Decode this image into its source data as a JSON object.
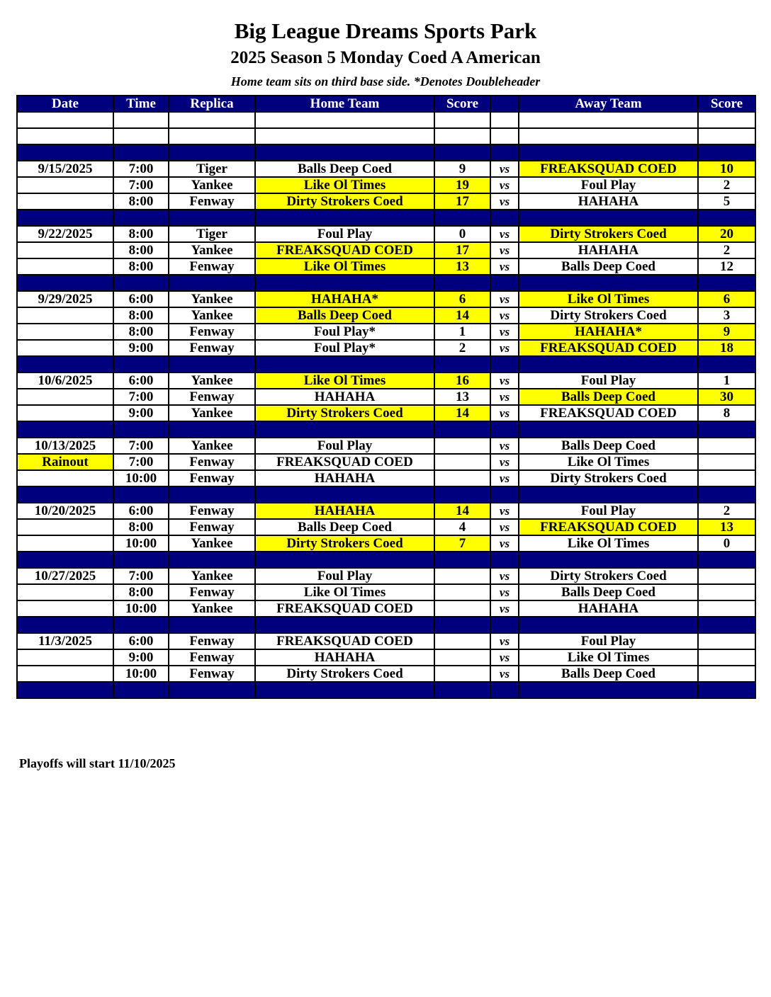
{
  "title": "Big League Dreams Sports Park",
  "subtitle": "2025 Season 5 Monday Coed A American",
  "note": "Home team sits on third base side.  *Denotes Doubleheader",
  "columns": [
    "Date",
    "Time",
    "Replica",
    "Home Team",
    "Score",
    "",
    "Away Team",
    "Score"
  ],
  "vs_label": "vs",
  "highlight_color": "#ffff00",
  "header_color": "#00007f",
  "weeks": [
    {
      "rows": [
        {
          "date": "9/15/2025",
          "time": "7:00",
          "replica": "Tiger",
          "home": "Balls Deep Coed",
          "home_score": "9",
          "away": "FREAKSQUAD COED",
          "away_score": "10",
          "winner": "away"
        },
        {
          "date": "",
          "time": "7:00",
          "replica": "Yankee",
          "home": "Like Ol Times",
          "home_score": "19",
          "away": "Foul Play",
          "away_score": "2",
          "winner": "home"
        },
        {
          "date": "",
          "time": "8:00",
          "replica": "Fenway",
          "home": "Dirty Strokers Coed",
          "home_score": "17",
          "away": "HAHAHA",
          "away_score": "5",
          "winner": "home"
        }
      ]
    },
    {
      "rows": [
        {
          "date": "9/22/2025",
          "time": "8:00",
          "replica": "Tiger",
          "home": "Foul Play",
          "home_score": "0",
          "away": "Dirty Strokers Coed",
          "away_score": "20",
          "winner": "away"
        },
        {
          "date": "",
          "time": "8:00",
          "replica": "Yankee",
          "home": "FREAKSQUAD COED",
          "home_score": "17",
          "away": "HAHAHA",
          "away_score": "2",
          "winner": "home"
        },
        {
          "date": "",
          "time": "8:00",
          "replica": "Fenway",
          "home": "Like Ol Times",
          "home_score": "13",
          "away": "Balls Deep Coed",
          "away_score": "12",
          "winner": "home"
        }
      ]
    },
    {
      "rows": [
        {
          "date": "9/29/2025",
          "time": "6:00",
          "replica": "Yankee",
          "home": "HAHAHA*",
          "home_score": "6",
          "away": "Like Ol Times",
          "away_score": "6",
          "winner": "tie"
        },
        {
          "date": "",
          "time": "8:00",
          "replica": "Yankee",
          "home": "Balls Deep Coed",
          "home_score": "14",
          "away": "Dirty Strokers Coed",
          "away_score": "3",
          "winner": "home"
        },
        {
          "date": "",
          "time": "8:00",
          "replica": "Fenway",
          "home": "Foul Play*",
          "home_score": "1",
          "away": "HAHAHA*",
          "away_score": "9",
          "winner": "away"
        },
        {
          "date": "",
          "time": "9:00",
          "replica": "Fenway",
          "home": "Foul Play*",
          "home_score": "2",
          "away": "FREAKSQUAD COED",
          "away_score": "18",
          "winner": "away"
        }
      ]
    },
    {
      "rows": [
        {
          "date": "10/6/2025",
          "time": "6:00",
          "replica": "Yankee",
          "home": "Like Ol Times",
          "home_score": "16",
          "away": "Foul Play",
          "away_score": "1",
          "winner": "home"
        },
        {
          "date": "",
          "time": "7:00",
          "replica": "Fenway",
          "home": "HAHAHA",
          "home_score": "13",
          "away": "Balls Deep Coed",
          "away_score": "30",
          "winner": "away"
        },
        {
          "date": "",
          "time": "9:00",
          "replica": "Yankee",
          "home": "Dirty Strokers Coed",
          "home_score": "14",
          "away": "FREAKSQUAD COED",
          "away_score": "8",
          "winner": "home"
        }
      ]
    },
    {
      "rows": [
        {
          "date": "10/13/2025",
          "time": "7:00",
          "replica": "Yankee",
          "home": "Foul Play",
          "home_score": "",
          "away": "Balls Deep Coed",
          "away_score": "",
          "winner": ""
        },
        {
          "date": "Rainout",
          "date_highlight": true,
          "time": "7:00",
          "replica": "Fenway",
          "home": "FREAKSQUAD COED",
          "home_score": "",
          "away": "Like Ol Times",
          "away_score": "",
          "winner": ""
        },
        {
          "date": "",
          "time": "10:00",
          "replica": "Fenway",
          "home": "HAHAHA",
          "home_score": "",
          "away": "Dirty Strokers Coed",
          "away_score": "",
          "winner": ""
        }
      ]
    },
    {
      "rows": [
        {
          "date": "10/20/2025",
          "time": "6:00",
          "replica": "Fenway",
          "home": "HAHAHA",
          "home_score": "14",
          "away": "Foul Play",
          "away_score": "2",
          "winner": "home"
        },
        {
          "date": "",
          "time": "8:00",
          "replica": "Fenway",
          "home": "Balls Deep Coed",
          "home_score": "4",
          "away": "FREAKSQUAD COED",
          "away_score": "13",
          "winner": "away"
        },
        {
          "date": "",
          "time": "10:00",
          "replica": "Yankee",
          "home": "Dirty Strokers Coed",
          "home_score": "7",
          "away": "Like Ol Times",
          "away_score": "0",
          "winner": "home"
        }
      ]
    },
    {
      "rows": [
        {
          "date": "10/27/2025",
          "time": "7:00",
          "replica": "Yankee",
          "home": "Foul Play",
          "home_score": "",
          "away": "Dirty Strokers Coed",
          "away_score": "",
          "winner": ""
        },
        {
          "date": "",
          "time": "8:00",
          "replica": "Fenway",
          "home": "Like Ol Times",
          "home_score": "",
          "away": "Balls Deep Coed",
          "away_score": "",
          "winner": ""
        },
        {
          "date": "",
          "time": "10:00",
          "replica": "Yankee",
          "home": "FREAKSQUAD COED",
          "home_score": "",
          "away": "HAHAHA",
          "away_score": "",
          "winner": ""
        }
      ]
    },
    {
      "rows": [
        {
          "date": "11/3/2025",
          "time": "6:00",
          "replica": "Fenway",
          "home": "FREAKSQUAD COED",
          "home_score": "",
          "away": "Foul Play",
          "away_score": "",
          "winner": ""
        },
        {
          "date": "",
          "time": "9:00",
          "replica": "Fenway",
          "home": "HAHAHA",
          "home_score": "",
          "away": "Like Ol Times",
          "away_score": "",
          "winner": ""
        },
        {
          "date": "",
          "time": "10:00",
          "replica": "Fenway",
          "home": "Dirty Strokers Coed",
          "home_score": "",
          "away": "Balls Deep Coed",
          "away_score": "",
          "winner": ""
        }
      ]
    }
  ],
  "footer": "Playoffs will start 11/10/2025"
}
